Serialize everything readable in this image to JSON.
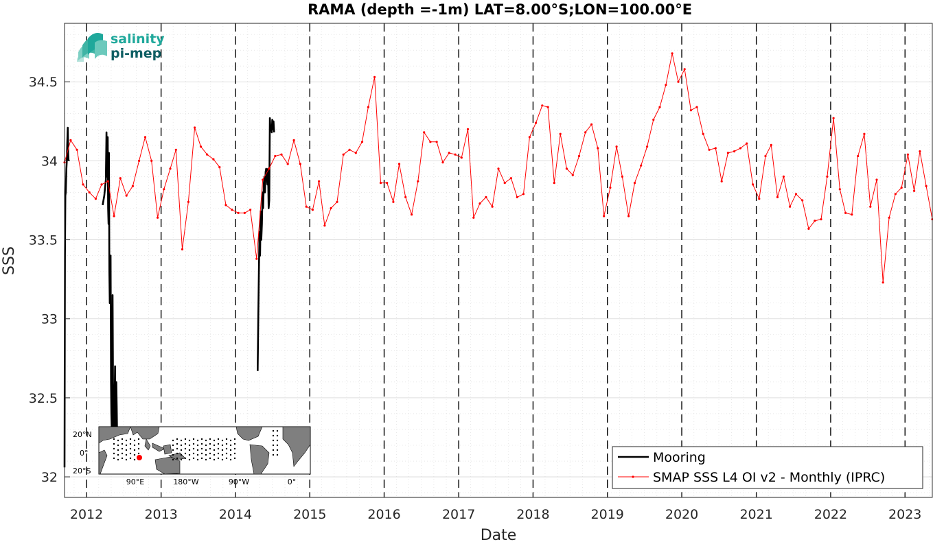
{
  "logo": {
    "line1": "salinity",
    "line2": "pi-mep",
    "color1": "#1fa89b",
    "color2": "#0e5e63"
  },
  "chart_data": {
    "type": "line",
    "title": "RAMA (depth =-1m) LAT=8.00°S;LON=100.00°E",
    "xlabel": "Date",
    "ylabel": "SSS",
    "xlim": [
      "2011-09-15",
      "2023-05-15"
    ],
    "ylim": [
      31.87,
      34.87
    ],
    "x_ticks": [
      "2012",
      "2013",
      "2014",
      "2015",
      "2016",
      "2017",
      "2018",
      "2019",
      "2020",
      "2021",
      "2022",
      "2023"
    ],
    "y_ticks": [
      32,
      32.5,
      33,
      33.5,
      34,
      34.5
    ],
    "grid": true,
    "year_boundaries_dashed": true,
    "legend_position": "bottom-right",
    "series": [
      {
        "name": "Mooring",
        "color": "#000000",
        "x": [
          "2011-09-15",
          "2011-09-17",
          "2011-09-19",
          "2011-09-21",
          "2011-09-24",
          "2011-09-26",
          "2011-09-28",
          "2011-10-01",
          "2011-10-03",
          "2011-10-05",
          "2012-03-20",
          "2012-03-28",
          "2012-04-05",
          "2012-04-08",
          "2012-04-10",
          "2012-04-12",
          "2012-04-14",
          "2012-04-16",
          "2012-04-18",
          "2012-04-20",
          "2012-04-22",
          "2012-04-24",
          "2012-04-26",
          "2012-04-28",
          "2012-04-30",
          "2012-05-02",
          "2012-05-04",
          "2012-05-06",
          "2012-05-08",
          "2012-05-10",
          "2012-05-12",
          "2012-05-14",
          "2012-05-16",
          "2012-05-18",
          "2012-05-20",
          "2012-05-22",
          "2012-05-24",
          "2012-05-26",
          "2012-05-28",
          "2012-05-30",
          "2012-06-01",
          "2012-06-03",
          "2014-04-20",
          "2014-04-23",
          "2014-04-26",
          "2014-04-29",
          "2014-05-02",
          "2014-05-05",
          "2014-05-08",
          "2014-05-11",
          "2014-05-14",
          "2014-05-17",
          "2014-05-20",
          "2014-05-23",
          "2014-05-26",
          "2014-05-29",
          "2014-06-01",
          "2014-06-04",
          "2014-06-07",
          "2014-06-10",
          "2014-06-13",
          "2014-06-16",
          "2014-06-19",
          "2014-06-22",
          "2014-06-25",
          "2014-06-28",
          "2014-07-01",
          "2014-07-04",
          "2014-07-07",
          "2014-07-10"
        ],
        "values": [
          32.06,
          33.4,
          33.78,
          33.8,
          33.95,
          34.0,
          34.1,
          34.21,
          34.05,
          34.0,
          33.72,
          33.78,
          33.88,
          34.18,
          33.9,
          34.1,
          34.15,
          33.7,
          33.6,
          34.05,
          33.3,
          33.1,
          33.2,
          33.4,
          32.6,
          32.4,
          32.3,
          32.35,
          33.15,
          32.6,
          32.3,
          32.45,
          32.25,
          32.5,
          32.7,
          32.35,
          32.3,
          32.6,
          32.45,
          32.25,
          32.3,
          32.24,
          32.67,
          33.0,
          33.3,
          33.55,
          33.4,
          33.68,
          33.5,
          33.6,
          33.8,
          33.7,
          33.85,
          33.9,
          33.8,
          33.93,
          33.95,
          33.9,
          33.85,
          33.95,
          33.7,
          33.75,
          34.27,
          34.2,
          34.22,
          34.18,
          34.26,
          34.2,
          34.25,
          34.18
        ]
      },
      {
        "name": "SMAP SSS L4 OI v2 - Monthly (IPRC)",
        "color": "#ff0000",
        "x": [
          "2011-09-15",
          "2011-10-15",
          "2011-11-15",
          "2011-12-15",
          "2012-01-15",
          "2012-02-15",
          "2012-03-15",
          "2012-04-15",
          "2012-05-15",
          "2012-06-15",
          "2012-07-15",
          "2012-08-15",
          "2012-09-15",
          "2012-10-15",
          "2012-11-15",
          "2012-12-15",
          "2013-01-15",
          "2013-02-15",
          "2013-03-15",
          "2013-04-15",
          "2013-05-15",
          "2013-06-15",
          "2013-07-15",
          "2013-08-15",
          "2013-09-15",
          "2013-10-15",
          "2013-11-15",
          "2013-12-15",
          "2014-01-15",
          "2014-02-15",
          "2014-03-15",
          "2014-04-15",
          "2014-05-15",
          "2014-06-15",
          "2014-07-15",
          "2014-08-15",
          "2014-09-15",
          "2014-10-15",
          "2014-11-15",
          "2014-12-15",
          "2015-01-15",
          "2015-02-15",
          "2015-03-15",
          "2015-04-15",
          "2015-05-15",
          "2015-06-15",
          "2015-07-15",
          "2015-08-15",
          "2015-09-15",
          "2015-10-15",
          "2015-11-15",
          "2015-12-15",
          "2016-01-15",
          "2016-02-15",
          "2016-03-15",
          "2016-04-15",
          "2016-05-15",
          "2016-06-15",
          "2016-07-15",
          "2016-08-15",
          "2016-09-15",
          "2016-10-15",
          "2016-11-15",
          "2016-12-15",
          "2017-01-15",
          "2017-02-15",
          "2017-03-15",
          "2017-04-15",
          "2017-05-15",
          "2017-06-15",
          "2017-07-15",
          "2017-08-15",
          "2017-09-15",
          "2017-10-15",
          "2017-11-15",
          "2017-12-15",
          "2018-01-15",
          "2018-02-15",
          "2018-03-15",
          "2018-04-15",
          "2018-05-15",
          "2018-06-15",
          "2018-07-15",
          "2018-08-15",
          "2018-09-15",
          "2018-10-15",
          "2018-11-15",
          "2018-12-15",
          "2019-01-15",
          "2019-02-15",
          "2019-03-15",
          "2019-04-15",
          "2019-05-15",
          "2019-06-15",
          "2019-07-15",
          "2019-08-15",
          "2019-09-15",
          "2019-10-15",
          "2019-11-15",
          "2019-12-15",
          "2020-01-15",
          "2020-02-15",
          "2020-03-15",
          "2020-04-15",
          "2020-05-15",
          "2020-06-15",
          "2020-07-15",
          "2020-08-15",
          "2020-09-15",
          "2020-10-15",
          "2020-11-15",
          "2020-12-15",
          "2021-01-15",
          "2021-02-15",
          "2021-03-15",
          "2021-04-15",
          "2021-05-15",
          "2021-06-15",
          "2021-07-15",
          "2021-08-15",
          "2021-09-15",
          "2021-10-15",
          "2021-11-15",
          "2021-12-15",
          "2022-01-15",
          "2022-02-15",
          "2022-03-15",
          "2022-04-15",
          "2022-05-15",
          "2022-06-15",
          "2022-07-15",
          "2022-08-15",
          "2022-09-15",
          "2022-10-15",
          "2022-11-15",
          "2022-12-15",
          "2023-01-15",
          "2023-02-15",
          "2023-03-15",
          "2023-04-15",
          "2023-05-15"
        ],
        "values": [
          33.99,
          34.13,
          34.07,
          33.85,
          33.8,
          33.76,
          33.85,
          33.87,
          33.65,
          33.89,
          33.78,
          33.84,
          34.0,
          34.15,
          34.0,
          33.64,
          33.82,
          33.95,
          34.07,
          33.44,
          33.74,
          34.21,
          34.09,
          34.04,
          34.01,
          33.96,
          33.72,
          33.69,
          33.67,
          33.67,
          33.69,
          33.38,
          33.88,
          33.95,
          34.03,
          34.04,
          33.98,
          34.13,
          33.98,
          33.71,
          33.69,
          33.87,
          33.59,
          33.7,
          33.74,
          34.04,
          34.07,
          34.05,
          34.12,
          34.34,
          34.53,
          33.86,
          33.86,
          33.74,
          33.98,
          33.77,
          33.66,
          33.87,
          34.18,
          34.12,
          34.12,
          33.99,
          34.05,
          34.04,
          34.02,
          34.2,
          33.64,
          33.73,
          33.77,
          33.71,
          33.95,
          33.86,
          33.89,
          33.77,
          33.79,
          34.15,
          34.24,
          34.35,
          34.34,
          33.86,
          34.17,
          33.95,
          33.91,
          34.03,
          34.18,
          34.23,
          34.08,
          33.65,
          33.83,
          34.09,
          33.9,
          33.65,
          33.86,
          33.97,
          34.09,
          34.26,
          34.34,
          34.48,
          34.68,
          34.5,
          34.58,
          34.32,
          34.34,
          34.17,
          34.07,
          34.08,
          33.87,
          34.05,
          34.06,
          34.08,
          34.11,
          33.85,
          33.76,
          34.03,
          34.1,
          33.77,
          33.9,
          33.71,
          33.79,
          33.75,
          33.57,
          33.62,
          33.63,
          33.9,
          34.27,
          33.82,
          33.67,
          33.66,
          34.03,
          34.17,
          33.71,
          33.88,
          33.23,
          33.64,
          33.79,
          33.83,
          34.04,
          33.81,
          34.06,
          33.84,
          33.63
        ]
      }
    ],
    "inset_map": {
      "y_tick_labels": [
        "20°N",
        "0°",
        "20°S"
      ],
      "x_tick_labels": [
        "90°E",
        "180°W",
        "90°W",
        "0°"
      ],
      "marker_color": "#ff0000"
    }
  }
}
